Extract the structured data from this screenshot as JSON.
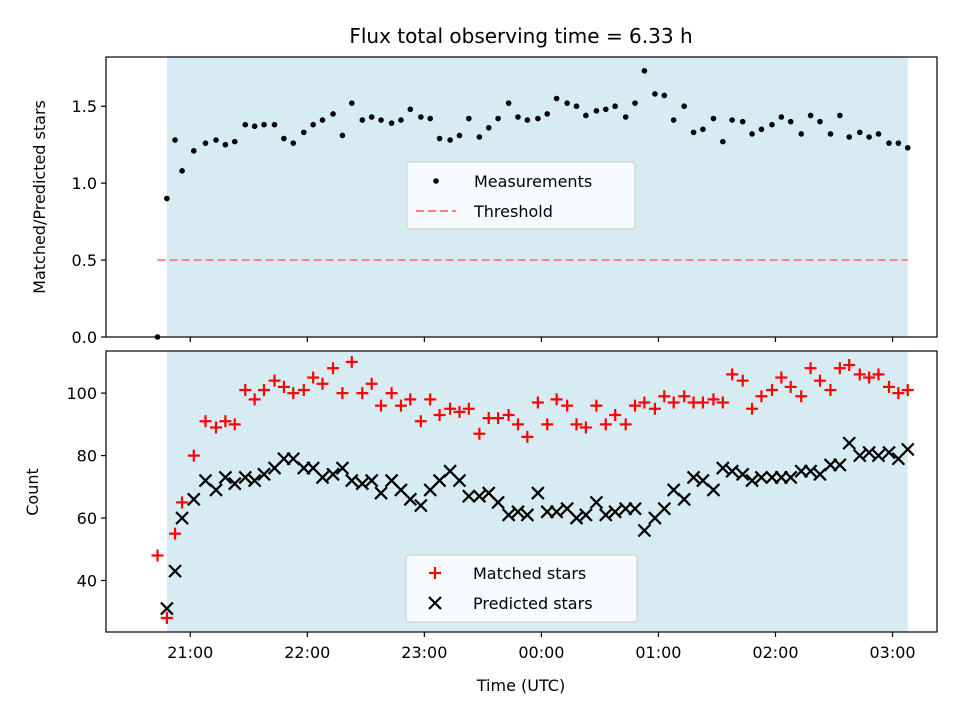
{
  "title": "Flux total observing time = 6.33 h",
  "colors": {
    "shade": "#add8e6",
    "threshold": "#ff7f7f",
    "matched": "#ff0000",
    "predicted": "#000000",
    "measurement": "#000000"
  },
  "chart_data": [
    {
      "type": "scatter",
      "ylabel": "Matched/Predicted stars",
      "xlabel": "",
      "xlim_hours": [
        20.28,
        27.38
      ],
      "ylim": [
        0,
        1.82
      ],
      "yticks": [
        "0.0",
        "0.5",
        "1.0",
        "1.5"
      ],
      "shaded_span_hours": [
        20.8,
        27.13
      ],
      "threshold": {
        "value": 0.5,
        "x_from_hours": 20.72,
        "x_to_hours": 27.13
      },
      "legend": {
        "position": "center",
        "items": [
          "Measurements",
          "Threshold"
        ]
      },
      "series": [
        {
          "name": "Measurements",
          "x_hours": [
            20.72,
            20.8,
            20.87,
            20.93,
            21.03,
            21.13,
            21.22,
            21.3,
            21.38,
            21.47,
            21.55,
            21.63,
            21.72,
            21.8,
            21.88,
            21.97,
            22.05,
            22.13,
            22.22,
            22.3,
            22.38,
            22.47,
            22.55,
            22.63,
            22.72,
            22.8,
            22.88,
            22.97,
            23.05,
            23.13,
            23.22,
            23.3,
            23.38,
            23.47,
            23.55,
            23.63,
            23.72,
            23.8,
            23.88,
            23.97,
            24.05,
            24.13,
            24.22,
            24.3,
            24.38,
            24.47,
            24.55,
            24.63,
            24.72,
            24.8,
            24.88,
            24.97,
            25.05,
            25.13,
            25.22,
            25.3,
            25.38,
            25.47,
            25.55,
            25.63,
            25.72,
            25.8,
            25.88,
            25.97,
            26.05,
            26.13,
            26.22,
            26.3,
            26.38,
            26.47,
            26.55,
            26.63,
            26.72,
            26.8,
            26.88,
            26.97,
            27.05,
            27.13
          ],
          "values": [
            0.0,
            0.9,
            1.28,
            1.08,
            1.21,
            1.26,
            1.28,
            1.25,
            1.27,
            1.38,
            1.37,
            1.38,
            1.38,
            1.29,
            1.26,
            1.33,
            1.38,
            1.41,
            1.45,
            1.31,
            1.52,
            1.41,
            1.43,
            1.41,
            1.39,
            1.41,
            1.48,
            1.43,
            1.42,
            1.29,
            1.28,
            1.31,
            1.42,
            1.3,
            1.36,
            1.42,
            1.52,
            1.43,
            1.41,
            1.42,
            1.45,
            1.55,
            1.52,
            1.5,
            1.44,
            1.47,
            1.48,
            1.5,
            1.43,
            1.52,
            1.73,
            1.58,
            1.57,
            1.41,
            1.5,
            1.33,
            1.35,
            1.42,
            1.27,
            1.41,
            1.4,
            1.32,
            1.35,
            1.38,
            1.43,
            1.4,
            1.32,
            1.44,
            1.4,
            1.32,
            1.44,
            1.3,
            1.33,
            1.3,
            1.32,
            1.26,
            1.26,
            1.23
          ]
        }
      ]
    },
    {
      "type": "scatter",
      "ylabel": "Count",
      "xlabel": "Time (UTC)",
      "xlim_hours": [
        20.28,
        27.38
      ],
      "ylim": [
        23.5,
        113.5
      ],
      "yticks": [
        "40",
        "60",
        "80",
        "100"
      ],
      "xticks": [
        "21:00",
        "22:00",
        "23:00",
        "00:00",
        "01:00",
        "02:00",
        "03:00"
      ],
      "shaded_span_hours": [
        20.8,
        27.13
      ],
      "legend": {
        "position": "bottom-center",
        "items": [
          "Matched stars",
          "Predicted stars"
        ]
      },
      "series": [
        {
          "name": "Matched stars",
          "marker": "+",
          "x_hours": [
            20.72,
            20.8,
            20.87,
            20.93,
            21.03,
            21.13,
            21.22,
            21.3,
            21.38,
            21.47,
            21.55,
            21.63,
            21.72,
            21.8,
            21.88,
            21.97,
            22.05,
            22.13,
            22.22,
            22.3,
            22.38,
            22.47,
            22.55,
            22.63,
            22.72,
            22.8,
            22.88,
            22.97,
            23.05,
            23.13,
            23.22,
            23.3,
            23.38,
            23.47,
            23.55,
            23.63,
            23.72,
            23.8,
            23.88,
            23.97,
            24.05,
            24.13,
            24.22,
            24.3,
            24.38,
            24.47,
            24.55,
            24.63,
            24.72,
            24.8,
            24.88,
            24.97,
            25.05,
            25.13,
            25.22,
            25.3,
            25.38,
            25.47,
            25.55,
            25.63,
            25.72,
            25.8,
            25.88,
            25.97,
            26.05,
            26.13,
            26.22,
            26.3,
            26.38,
            26.47,
            26.55,
            26.63,
            26.72,
            26.8,
            26.88,
            26.97,
            27.05,
            27.13
          ],
          "values": [
            48,
            28,
            55,
            65,
            80,
            91,
            89,
            91,
            90,
            101,
            98,
            101,
            104,
            102,
            100,
            101,
            105,
            103,
            108,
            100,
            110,
            100,
            103,
            96,
            100,
            96,
            98,
            91,
            98,
            93,
            95,
            94,
            95,
            87,
            92,
            92,
            93,
            90,
            86,
            97,
            90,
            98,
            96,
            90,
            89,
            96,
            90,
            93,
            90,
            96,
            97,
            95,
            99,
            97,
            99,
            97,
            97,
            98,
            97,
            106,
            104,
            95,
            99,
            101,
            105,
            102,
            99,
            108,
            104,
            101,
            108,
            109,
            106,
            105,
            106,
            102,
            100,
            101
          ]
        },
        {
          "name": "Predicted stars",
          "marker": "x",
          "x_hours": [
            20.8,
            20.87,
            20.93,
            21.03,
            21.13,
            21.22,
            21.3,
            21.38,
            21.47,
            21.55,
            21.63,
            21.72,
            21.8,
            21.88,
            21.97,
            22.05,
            22.13,
            22.22,
            22.3,
            22.38,
            22.47,
            22.55,
            22.63,
            22.72,
            22.8,
            22.88,
            22.97,
            23.05,
            23.13,
            23.22,
            23.3,
            23.38,
            23.47,
            23.55,
            23.63,
            23.72,
            23.8,
            23.88,
            23.97,
            24.05,
            24.13,
            24.22,
            24.3,
            24.38,
            24.47,
            24.55,
            24.63,
            24.72,
            24.8,
            24.88,
            24.97,
            25.05,
            25.13,
            25.22,
            25.3,
            25.38,
            25.47,
            25.55,
            25.63,
            25.72,
            25.8,
            25.88,
            25.97,
            26.05,
            26.13,
            26.22,
            26.3,
            26.38,
            26.47,
            26.55,
            26.63,
            26.72,
            26.8,
            26.88,
            26.97,
            27.05,
            27.13
          ],
          "values": [
            31,
            43,
            60,
            66,
            72,
            69,
            73,
            71,
            73,
            72,
            74,
            76,
            79,
            79,
            76,
            76,
            73,
            74,
            76,
            72,
            71,
            72,
            68,
            72,
            69,
            66,
            64,
            69,
            72,
            75,
            72,
            67,
            67,
            68,
            65,
            61,
            62,
            61,
            68,
            62,
            62,
            63,
            60,
            61,
            65,
            61,
            62,
            63,
            63,
            56,
            60,
            63,
            69,
            66,
            73,
            72,
            69,
            76,
            75,
            74,
            72,
            73,
            73,
            73,
            73,
            75,
            75,
            74,
            77,
            77,
            84,
            80,
            81,
            80,
            81,
            79,
            82
          ]
        }
      ]
    }
  ]
}
